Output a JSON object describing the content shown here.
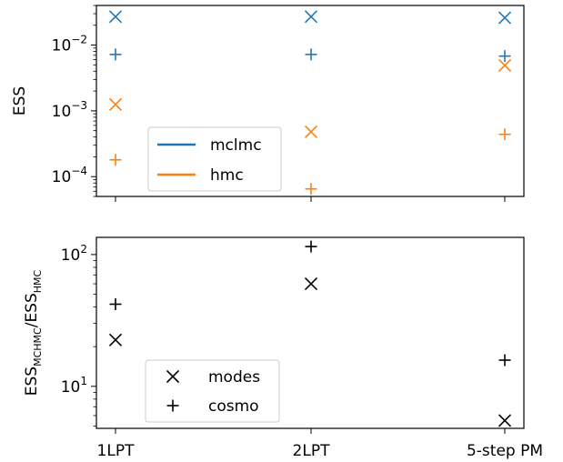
{
  "chart_data": [
    {
      "type": "scatter",
      "title": "",
      "xlabel": "",
      "ylabel": "ESS",
      "yscale": "log",
      "ylim": [
        5e-05,
        0.04
      ],
      "categories": [
        "1LPT",
        "2LPT",
        "5-step PM"
      ],
      "yticks": [
        {
          "value": 0.0001,
          "base": "10",
          "exp": "−4"
        },
        {
          "value": 0.001,
          "base": "10",
          "exp": "−3"
        },
        {
          "value": 0.01,
          "base": "10",
          "exp": "−2"
        }
      ],
      "series": [
        {
          "name": "mclmc",
          "marker": "x",
          "color": "#1f77b4",
          "values": [
            0.027,
            0.027,
            0.026
          ]
        },
        {
          "name": "mclmc",
          "marker": "+",
          "color": "#1f77b4",
          "values": [
            0.0072,
            0.0072,
            0.0068
          ]
        },
        {
          "name": "hmc",
          "marker": "x",
          "color": "#ff7f0e",
          "values": [
            0.00125,
            0.00048,
            0.0049
          ]
        },
        {
          "name": "hmc",
          "marker": "+",
          "color": "#ff7f0e",
          "values": [
            0.00018,
            6.5e-05,
            0.00044
          ]
        }
      ],
      "legend": {
        "placement": "lower-left",
        "entries": [
          {
            "label": "mclmc",
            "color": "#1f77b4"
          },
          {
            "label": "hmc",
            "color": "#ff7f0e"
          }
        ]
      },
      "grid": false
    },
    {
      "type": "scatter",
      "title": "",
      "xlabel": "",
      "ylabel": {
        "base": "ESS",
        "sub1": "MCHMC",
        "slash": "/ESS",
        "sub2": "HMC"
      },
      "yscale": "log",
      "ylim": [
        4.8,
        135
      ],
      "categories": [
        "1LPT",
        "2LPT",
        "5-step PM"
      ],
      "yticks": [
        {
          "value": 10,
          "base": "10",
          "exp": "1"
        },
        {
          "value": 100,
          "base": "10",
          "exp": "2"
        }
      ],
      "series": [
        {
          "name": "modes",
          "marker": "x",
          "color": "#000000",
          "values": [
            22.5,
            60,
            5.5
          ]
        },
        {
          "name": "cosmo",
          "marker": "+",
          "color": "#000000",
          "values": [
            42,
            115,
            15.8
          ]
        }
      ],
      "legend": {
        "placement": "lower-left",
        "entries": [
          {
            "label": "modes",
            "marker": "x"
          },
          {
            "label": "cosmo",
            "marker": "+"
          }
        ]
      },
      "grid": false
    }
  ]
}
